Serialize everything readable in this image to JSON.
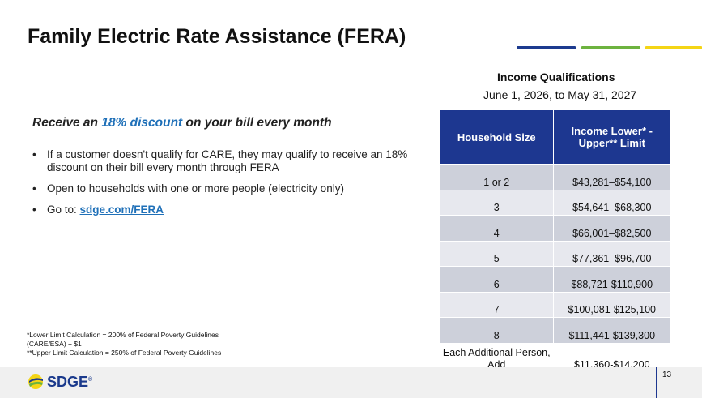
{
  "title": "Family Electric Rate Assistance (FERA)",
  "colors": {
    "accent_blue": "#1d3b8f",
    "accent_green": "#6db33f",
    "accent_yellow": "#f4d516",
    "table_header": "#1d3790",
    "link": "#1f70b8"
  },
  "income": {
    "heading": "Income Qualifications",
    "date_range": "June 1, 2026, to May 31, 2027"
  },
  "subhead": {
    "prefix": "Receive an ",
    "highlight": "18% discount",
    "suffix": " on your bill every month"
  },
  "bullets": {
    "b1": "If a customer doesn't qualify for CARE, they may qualify to receive an 18% discount on their bill every month through FERA",
    "b2": "Open to households with one or more people (electricity only)",
    "b3_prefix": "Go to: ",
    "b3_link": "sdge.com/FERA",
    "bullet_char": "•"
  },
  "table": {
    "header_size": "Household Size",
    "header_limit": "Income Lower* - Upper** Limit",
    "rows": [
      {
        "size": "1 or 2",
        "limit": "$43,281–$54,100"
      },
      {
        "size": "3",
        "limit": "$54,641–$68,300"
      },
      {
        "size": "4",
        "limit": "$66,001–$82,500"
      },
      {
        "size": "5",
        "limit": "$77,361–$96,700"
      },
      {
        "size": "6",
        "limit": "$88,721-$110,900"
      },
      {
        "size": "7",
        "limit": "$100,081-$125,100"
      },
      {
        "size": "8",
        "limit": "$111,441-$139,300"
      },
      {
        "size": "Each Additional Person, Add",
        "limit": "$11,360-$14,200"
      }
    ]
  },
  "footnotes": {
    "lower": "*Lower Limit Calculation = 200% of Federal Poverty Guidelines (CARE/ESA) + $1",
    "upper": "**Upper Limit Calculation = 250% of Federal Poverty Guidelines"
  },
  "footer": {
    "logo_text": "SDGE",
    "logo_mark": "®",
    "page_number": "13"
  }
}
